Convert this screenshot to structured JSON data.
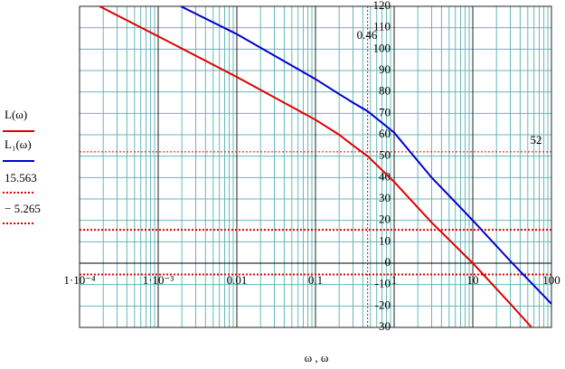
{
  "chart_data": {
    "type": "line",
    "x_label": "ω , ω",
    "xlog": true,
    "xlim": [
      0.0001,
      100
    ],
    "xticks": [
      {
        "value": 0.0001,
        "label": "1·10⁻⁴"
      },
      {
        "value": 0.001,
        "label": "1·10⁻³"
      },
      0.01,
      0.1,
      1,
      10,
      100
    ],
    "ylim": [
      -30,
      120
    ],
    "yticks": [
      -30,
      -20,
      -10,
      0,
      10,
      20,
      30,
      40,
      50,
      60,
      70,
      80,
      90,
      100,
      110,
      120
    ],
    "grid": true,
    "series": [
      {
        "name": "L(ω)",
        "color": "#e00000",
        "x": [
          0.00018,
          0.001,
          0.01,
          0.1,
          0.2,
          0.3,
          0.46,
          1,
          3,
          10,
          30,
          56
        ],
        "values": [
          120,
          106,
          87,
          67,
          60,
          55,
          50,
          38,
          19,
          0,
          -19,
          -30
        ]
      },
      {
        "name": "L₁(ω)",
        "color": "#0000d0",
        "x": [
          0.00194,
          0.01,
          0.1,
          0.2,
          0.3,
          0.46,
          1,
          3,
          10,
          30,
          100
        ],
        "values": [
          120,
          107,
          86,
          79,
          75,
          71,
          61,
          40,
          20,
          1,
          -19
        ]
      }
    ],
    "hlines": [
      {
        "value": 52,
        "label": "52"
      },
      {
        "value": 15.563,
        "label": "15.563"
      },
      {
        "value": -5.265,
        "label": "− 5.265"
      }
    ],
    "hline_color": "#e00000",
    "vline": 0.46
  }
}
